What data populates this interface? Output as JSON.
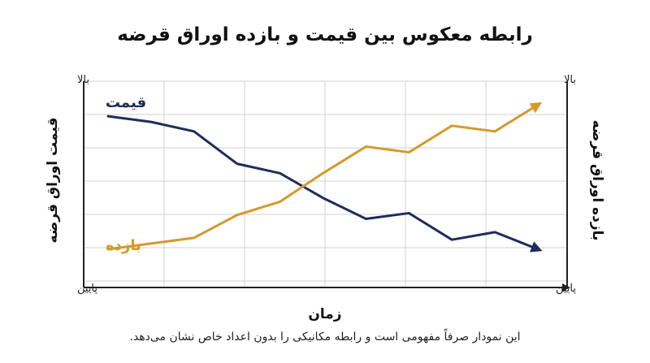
{
  "title": "رابطه معکوس بین قیمت و بازده اوراق قرضه",
  "caption": "این نمودار صرفاً مفهومی است و رابطه مکانیکی را بدون اعداد خاص نشان می‌دهد.",
  "colors": {
    "price": "#1f2d5c",
    "yield": "#d49a2a",
    "axis": "#222222",
    "grid": "#d0d0d0"
  },
  "chart_data": {
    "type": "line",
    "title": "رابطه معکوس بین قیمت و بازده اوراق قرضه",
    "xlabel": "زمان",
    "ylabel_left": "قیمت اوراق قرضه",
    "ylabel_right": "بازده اوراق قرضه",
    "y_tick_labels": {
      "top": "بالا",
      "bottom": "پایین"
    },
    "conceptual": true,
    "grid": true,
    "ylim": [
      0,
      10
    ],
    "x": [
      0,
      1,
      2,
      3,
      4,
      5,
      6,
      7,
      8,
      9,
      10
    ],
    "series": [
      {
        "name": "قیمت",
        "color": "#1f2d5c",
        "values": [
          8.5,
          8.2,
          7.7,
          6.0,
          5.5,
          4.2,
          3.1,
          3.4,
          2.0,
          2.4,
          1.5
        ]
      },
      {
        "name": "بازده",
        "color": "#d49a2a",
        "values": [
          1.5,
          1.8,
          2.1,
          3.3,
          4.0,
          5.5,
          6.9,
          6.6,
          8.0,
          7.7,
          9.1
        ]
      }
    ]
  }
}
